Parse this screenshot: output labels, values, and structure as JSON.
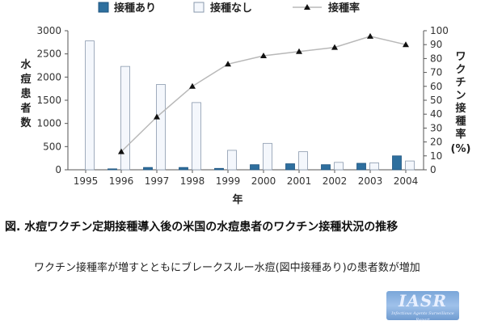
{
  "chart_data": {
    "type": "bar",
    "categories": [
      "1995",
      "1996",
      "1997",
      "1998",
      "1999",
      "2000",
      "2001",
      "2002",
      "2003",
      "2004"
    ],
    "series": [
      {
        "name": "接種あり",
        "kind": "bar",
        "axis": "left",
        "color": "#2e6f9e",
        "values": [
          0,
          20,
          50,
          50,
          30,
          110,
          130,
          110,
          140,
          300
        ]
      },
      {
        "name": "接種なし",
        "kind": "bar",
        "axis": "left",
        "color": "#f4f7fc",
        "values": [
          2780,
          2230,
          1840,
          1450,
          420,
          570,
          390,
          160,
          150,
          190
        ]
      },
      {
        "name": "接種率",
        "kind": "line",
        "axis": "right",
        "color": "#b8b8b8",
        "values": [
          null,
          13,
          38,
          60,
          76,
          82,
          85,
          88,
          96,
          90
        ]
      }
    ],
    "ylim": [
      0,
      3000
    ],
    "yticks": [
      "0",
      "500",
      "1000",
      "1500",
      "2000",
      "2500",
      "3000"
    ],
    "y2lim": [
      0,
      100
    ],
    "y2ticks": [
      "0",
      "10",
      "20",
      "30",
      "40",
      "50",
      "60",
      "70",
      "80",
      "90",
      "100"
    ],
    "xlabel": "年",
    "ylabel": "水痘患者数",
    "y2label": "ワクチン接種率",
    "y2unit": "(%)",
    "legend_position": "top"
  },
  "caption": "図. 水痘ワクチン定期接種導入後の米国の水痘患者のワクチン接種状況の推移",
  "note": "ワクチン接種率が増すとともにブレークスルー水痘(図中接種あり)の患者数が増加",
  "logo": {
    "main": "IASR",
    "sub": "Infectious Agents Surveillance Report"
  }
}
